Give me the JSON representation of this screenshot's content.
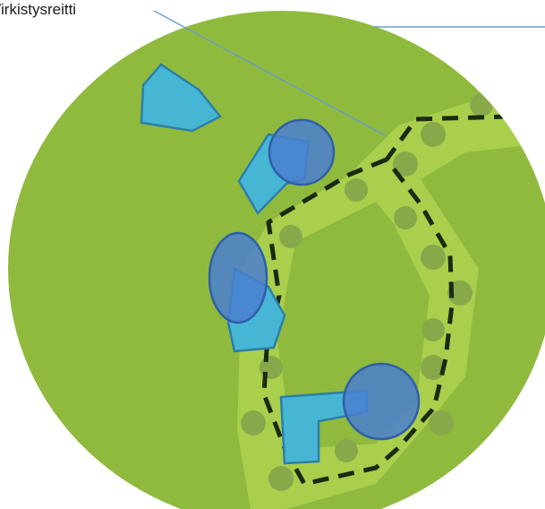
{
  "diagram": {
    "route_label": "Virkistysreitti",
    "colors": {
      "area_fill": "#8fba3e",
      "corridor_fill": "#a9cf4c",
      "dot_fill": "#87a94a",
      "path_stroke": "#1b2a12",
      "building_fill": "#47b6d5",
      "building_stroke": "#2c7fa8",
      "circle_fill": "#4a7fd0",
      "circle_stroke": "#2f5fa8",
      "leader_line": "#6a9ec9"
    }
  }
}
